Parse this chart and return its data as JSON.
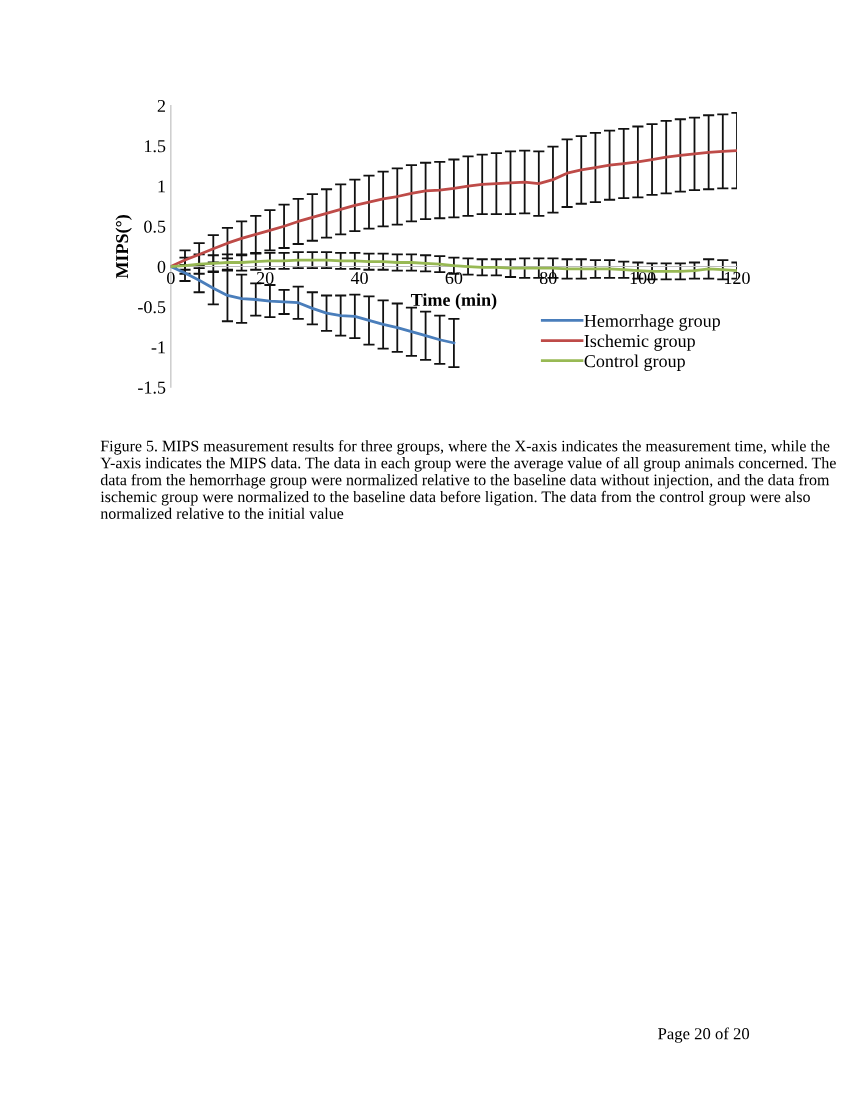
{
  "chart_data": {
    "type": "line",
    "xlabel": "Time (min)",
    "ylabel": "MIPS(°)",
    "x": [
      0,
      3,
      6,
      9,
      12,
      15,
      18,
      21,
      24,
      27,
      30,
      33,
      36,
      39,
      42,
      45,
      48,
      51,
      54,
      57,
      60,
      63,
      66,
      69,
      72,
      75,
      78,
      81,
      84,
      87,
      90,
      93,
      96,
      99,
      102,
      105,
      108,
      111,
      114,
      117,
      120
    ],
    "xlim": [
      0,
      120
    ],
    "xticks": [
      0,
      20,
      40,
      60,
      80,
      100,
      120
    ],
    "ylim": [
      -1.5,
      2
    ],
    "yticks": [
      -1.5,
      -1,
      -0.5,
      0,
      0.5,
      1,
      1.5,
      2
    ],
    "grid": false,
    "legend": "bottom right",
    "marker": "none",
    "line_style": "solid",
    "series": [
      {
        "name": "Hemorrhage group",
        "color": "#4a7ebb",
        "x": [
          0,
          3,
          6,
          9,
          12,
          15,
          18,
          21,
          24,
          27,
          30,
          33,
          36,
          39,
          42,
          45,
          48,
          51,
          54,
          57,
          60
        ],
        "values": [
          0,
          -0.08,
          -0.17,
          -0.27,
          -0.36,
          -0.4,
          -0.41,
          -0.43,
          -0.44,
          -0.45,
          -0.52,
          -0.58,
          -0.61,
          -0.62,
          -0.67,
          -0.72,
          -0.76,
          -0.81,
          -0.86,
          -0.91,
          -0.95
        ],
        "errors": [
          0,
          0.1,
          0.15,
          0.2,
          0.32,
          0.3,
          0.2,
          0.2,
          0.15,
          0.2,
          0.2,
          0.22,
          0.25,
          0.27,
          0.3,
          0.3,
          0.3,
          0.3,
          0.3,
          0.3,
          0.3
        ]
      },
      {
        "name": "Ischemic group",
        "color": "#be4b48",
        "values": [
          0,
          0.08,
          0.15,
          0.22,
          0.29,
          0.35,
          0.4,
          0.45,
          0.5,
          0.56,
          0.61,
          0.66,
          0.71,
          0.76,
          0.8,
          0.84,
          0.87,
          0.91,
          0.94,
          0.95,
          0.97,
          1.0,
          1.02,
          1.03,
          1.04,
          1.05,
          1.03,
          1.08,
          1.16,
          1.2,
          1.23,
          1.26,
          1.28,
          1.3,
          1.33,
          1.36,
          1.38,
          1.4,
          1.42,
          1.43,
          1.44
        ],
        "errors": [
          0,
          0.12,
          0.14,
          0.17,
          0.19,
          0.21,
          0.23,
          0.25,
          0.27,
          0.28,
          0.29,
          0.3,
          0.31,
          0.32,
          0.33,
          0.34,
          0.35,
          0.35,
          0.35,
          0.35,
          0.36,
          0.37,
          0.37,
          0.38,
          0.39,
          0.39,
          0.4,
          0.41,
          0.42,
          0.42,
          0.43,
          0.43,
          0.43,
          0.44,
          0.44,
          0.45,
          0.45,
          0.45,
          0.46,
          0.46,
          0.47
        ]
      },
      {
        "name": "Control group",
        "color": "#98b954",
        "values": [
          0,
          0.01,
          0.03,
          0.04,
          0.05,
          0.05,
          0.06,
          0.07,
          0.07,
          0.08,
          0.08,
          0.08,
          0.07,
          0.07,
          0.06,
          0.06,
          0.05,
          0.05,
          0.04,
          0.03,
          0.01,
          0.0,
          -0.01,
          -0.01,
          -0.02,
          -0.02,
          -0.02,
          -0.02,
          -0.03,
          -0.03,
          -0.03,
          -0.03,
          -0.04,
          -0.05,
          -0.06,
          -0.06,
          -0.06,
          -0.05,
          -0.03,
          -0.04,
          -0.05
        ],
        "errors": [
          0,
          0.1,
          0.12,
          0.1,
          0.1,
          0.1,
          0.1,
          0.1,
          0.1,
          0.1,
          0.1,
          0.1,
          0.1,
          0.1,
          0.1,
          0.1,
          0.1,
          0.1,
          0.1,
          0.1,
          0.1,
          0.1,
          0.1,
          0.1,
          0.11,
          0.12,
          0.12,
          0.12,
          0.12,
          0.12,
          0.11,
          0.11,
          0.1,
          0.1,
          0.1,
          0.1,
          0.1,
          0.1,
          0.12,
          0.12,
          0.1
        ]
      }
    ],
    "annotations": [
      "Figure 5. MIPS measurement results for three groups, where the X-axis indicates the measurement time, while the Y-axis indicates the MIPS data. The data in each group were the average value of all group animals concerned. The data from the hemorrhage group were normalized relative to the baseline data without injection, and the data from ischemic group were normalized to the baseline data before ligation. The data from the control group were also normalized relative to the initial value",
      "Page 20 of 20"
    ]
  }
}
